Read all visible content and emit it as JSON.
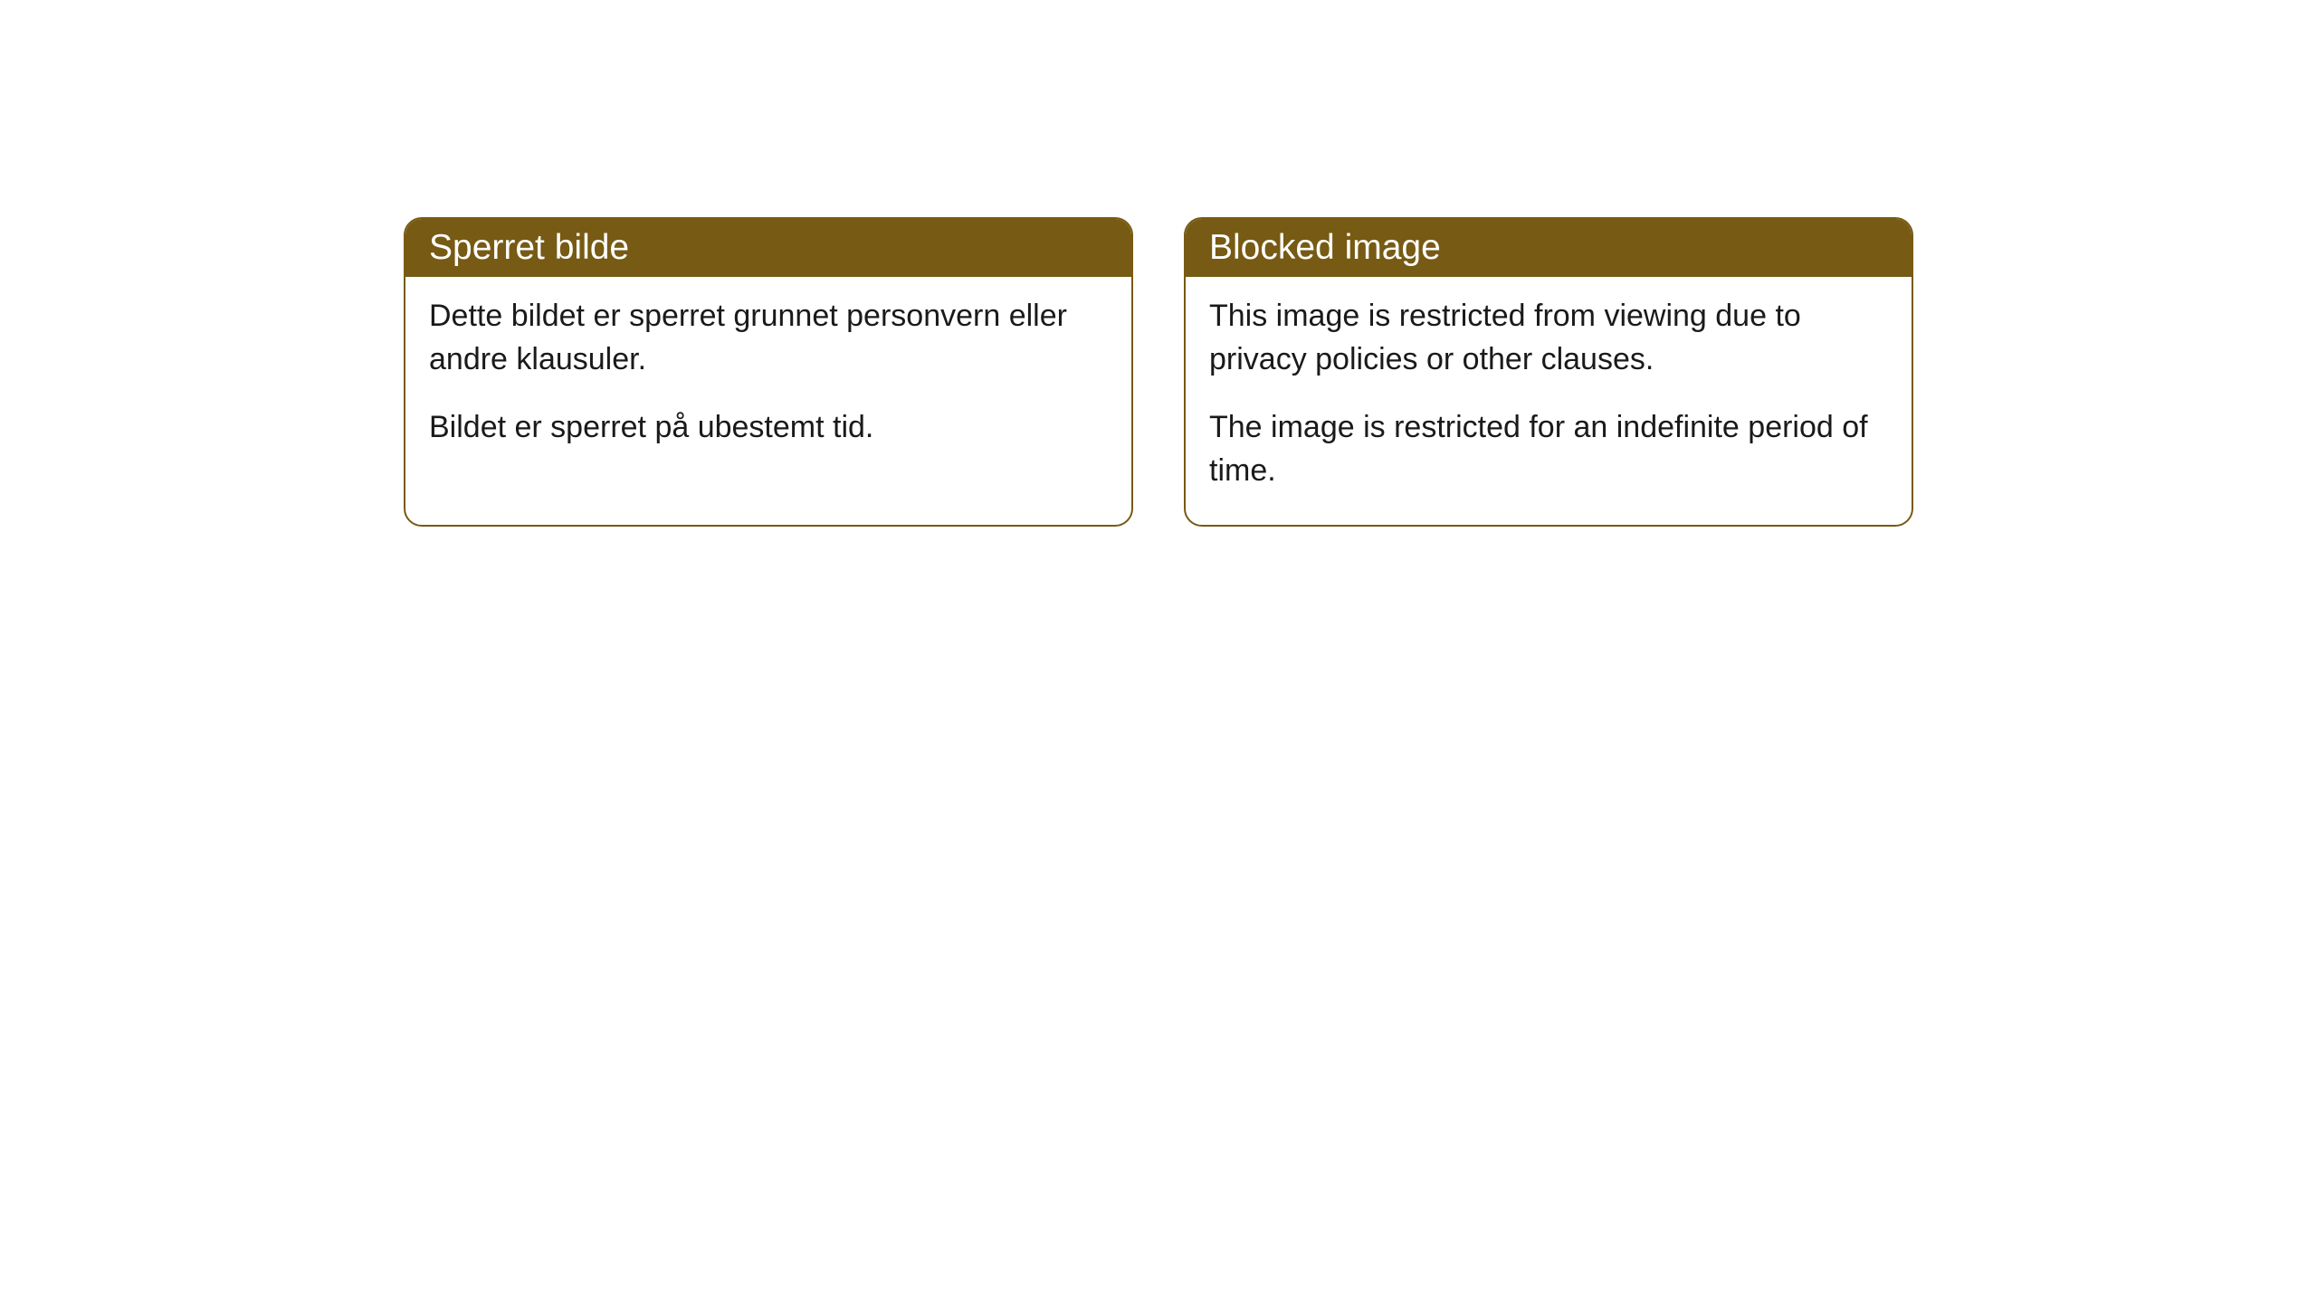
{
  "cards": [
    {
      "title": "Sperret bilde",
      "paragraph1": "Dette bildet er sperret grunnet personvern eller andre klausuler.",
      "paragraph2": "Bildet er sperret på ubestemt tid."
    },
    {
      "title": "Blocked image",
      "paragraph1": "This image is restricted from viewing due to privacy policies or other clauses.",
      "paragraph2": "The image is restricted for an indefinite period of time."
    }
  ],
  "style": {
    "header_background": "#775a13",
    "header_text_color": "#ffffff",
    "border_color": "#775a13",
    "body_text_color": "#1a1a1a",
    "background_color": "#ffffff",
    "border_radius": 20,
    "header_fontsize": 39,
    "body_fontsize": 34
  }
}
